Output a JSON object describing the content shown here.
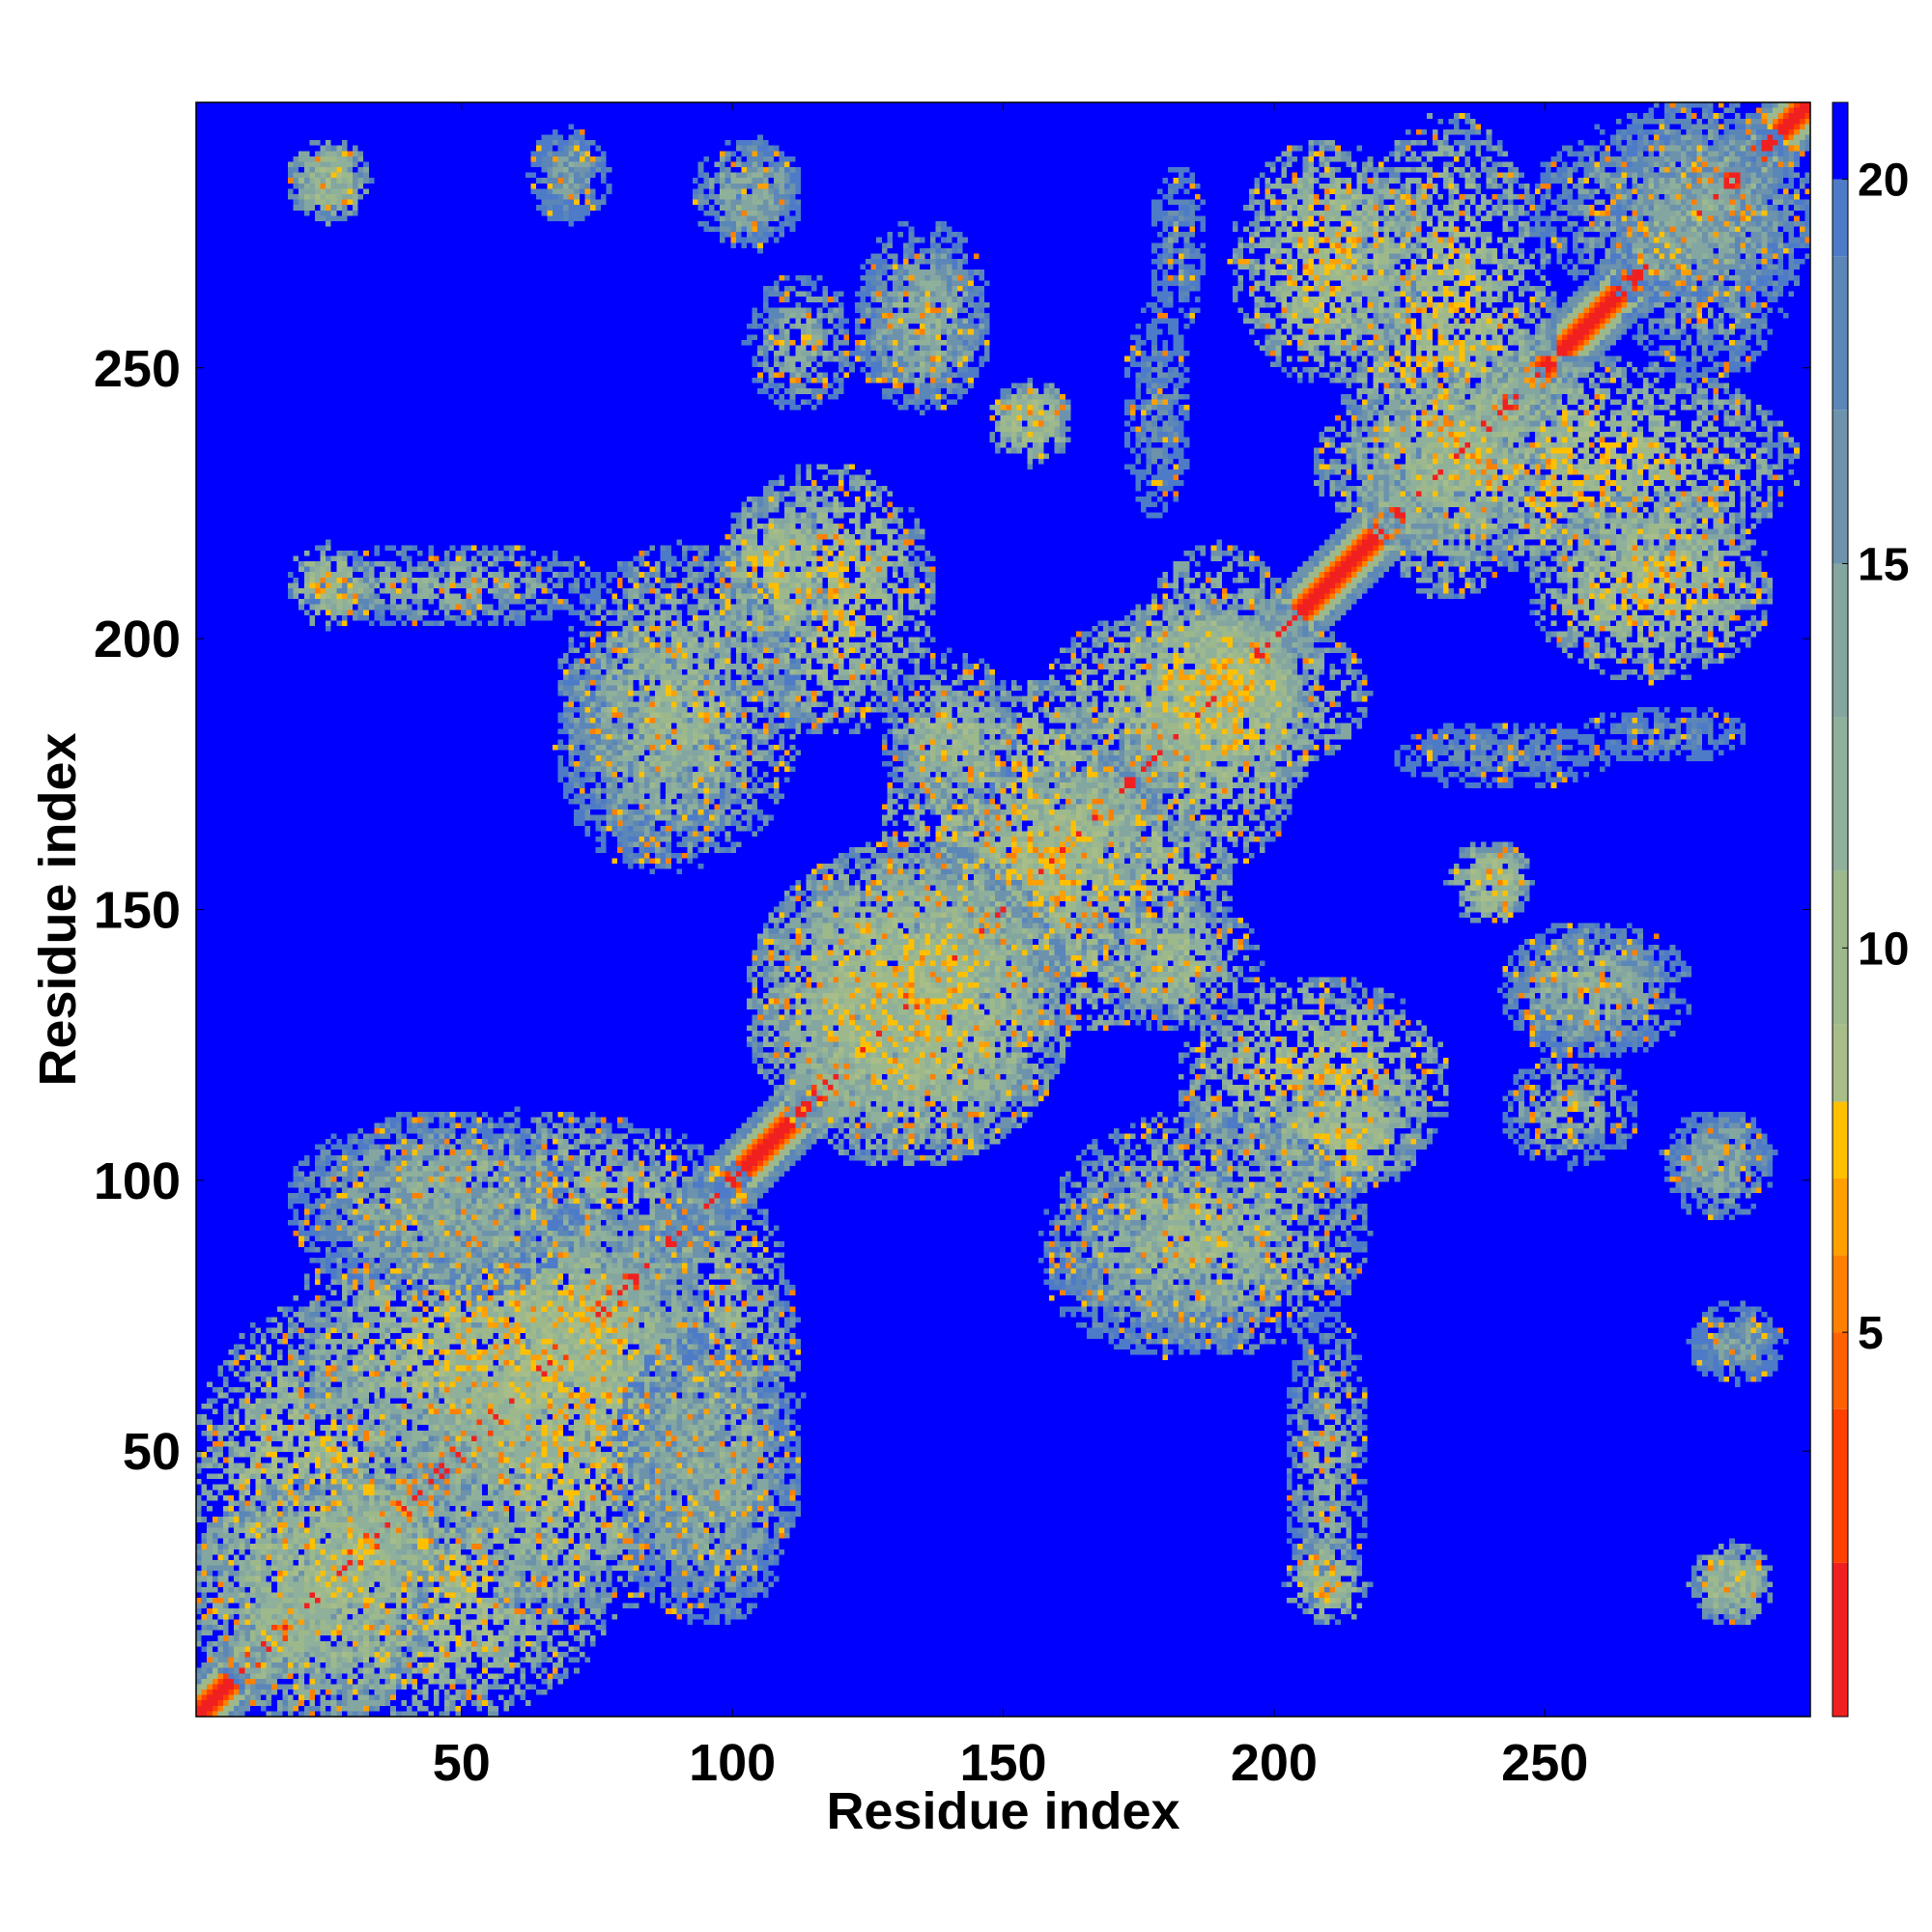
{
  "chart_data": {
    "type": "heatmap",
    "title": "",
    "xlabel": "Residue index",
    "ylabel": "Residue index",
    "xlim": [
      1,
      299
    ],
    "ylim": [
      1,
      299
    ],
    "x_ticks": [
      50,
      100,
      150,
      200,
      250
    ],
    "y_ticks": [
      50,
      100,
      150,
      200,
      250
    ],
    "matrix_size": 299,
    "symmetric": true,
    "grid": false,
    "colorbar": {
      "position": "right",
      "range": [
        0,
        21
      ],
      "ticks": [
        5,
        10,
        15,
        20
      ],
      "color_stops": [
        {
          "value": 0,
          "color": "#ff0000"
        },
        {
          "value": 2,
          "color": "#f02020"
        },
        {
          "value": 4,
          "color": "#ff4000"
        },
        {
          "value": 5,
          "color": "#ff6000"
        },
        {
          "value": 6,
          "color": "#ff8000"
        },
        {
          "value": 7,
          "color": "#ffa000"
        },
        {
          "value": 8,
          "color": "#ffc000"
        },
        {
          "value": 9,
          "color": "#a8bd88"
        },
        {
          "value": 11,
          "color": "#9db98c"
        },
        {
          "value": 13,
          "color": "#8fb09a"
        },
        {
          "value": 15,
          "color": "#84a6a0"
        },
        {
          "value": 17,
          "color": "#6d92ac"
        },
        {
          "value": 19,
          "color": "#5a86b8"
        },
        {
          "value": 20,
          "color": "#4d7bc8"
        },
        {
          "value": 21,
          "color": "#0000ff"
        }
      ],
      "background_color": "#0000ff"
    },
    "contact_regions": [
      {
        "x": [
          1,
          299
        ],
        "y": [
          1,
          299
        ],
        "kind": "diagonal"
      },
      {
        "x": [
          20,
          30
        ],
        "y": [
          280,
          290
        ],
        "value": 6
      },
      {
        "x": [
          65,
          72
        ],
        "y": [
          280,
          292
        ],
        "value": 12
      },
      {
        "x": [
          100,
          110
        ],
        "y": [
          275,
          290
        ],
        "value": 12
      },
      {
        "x": [
          105,
          120
        ],
        "y": [
          245,
          265
        ],
        "value": 10
      },
      {
        "x": [
          125,
          145
        ],
        "y": [
          245,
          270
        ],
        "value": 8
      },
      {
        "x": [
          180,
          185
        ],
        "y": [
          260,
          285
        ],
        "value": 14
      },
      {
        "x": [
          150,
          160
        ],
        "y": [
          238,
          245
        ],
        "value": 6
      },
      {
        "x": [
          100,
          135
        ],
        "y": [
          185,
          230
        ],
        "value": 6
      },
      {
        "x": [
          70,
          100
        ],
        "y": [
          160,
          200
        ],
        "value": 12
      },
      {
        "x": [
          130,
          175
        ],
        "y": [
          140,
          190
        ],
        "value": 5
      },
      {
        "x": [
          105,
          160
        ],
        "y": [
          105,
          160
        ],
        "value": 6
      },
      {
        "x": [
          170,
          195
        ],
        "y": [
          130,
          150
        ],
        "value": 8
      },
      {
        "x": [
          175,
          205
        ],
        "y": [
          160,
          215
        ],
        "value": 6
      },
      {
        "x": [
          215,
          250
        ],
        "y": [
          210,
          295
        ],
        "value": 6
      },
      {
        "x": [
          250,
          290
        ],
        "y": [
          195,
          225
        ],
        "value": 6
      },
      {
        "x": [
          250,
          300
        ],
        "y": [
          265,
          295
        ],
        "value": 10
      },
      {
        "x": [
          225,
          260
        ],
        "y": [
          175,
          182
        ],
        "value": 14
      },
      {
        "x": [
          245,
          275
        ],
        "y": [
          125,
          145
        ],
        "value": 10
      },
      {
        "x": [
          200,
          225
        ],
        "y": [
          100,
          115
        ],
        "value": 6
      },
      {
        "x": [
          160,
          215
        ],
        "y": [
          70,
          110
        ],
        "value": 8
      },
      {
        "x": [
          1,
          45
        ],
        "y": [
          1,
          75
        ],
        "value": 6
      },
      {
        "x": [
          20,
          100
        ],
        "y": [
          85,
          110
        ],
        "value": 8
      },
      {
        "x": [
          45,
          95
        ],
        "y": [
          20,
          95
        ],
        "value": 6
      },
      {
        "x": [
          80,
          110
        ],
        "y": [
          20,
          70
        ],
        "value": 10
      },
      {
        "x": [
          205,
          215
        ],
        "y": [
          20,
          75
        ],
        "value": 10
      },
      {
        "x": [
          280,
          290
        ],
        "y": [
          20,
          30
        ],
        "value": 8
      },
      {
        "x": [
          280,
          292
        ],
        "y": [
          65,
          75
        ],
        "value": 12
      },
      {
        "x": [
          275,
          290
        ],
        "y": [
          95,
          110
        ],
        "value": 10
      },
      {
        "x": [
          235,
          245
        ],
        "y": [
          150,
          160
        ],
        "value": 6
      },
      {
        "x": [
          20,
          30
        ],
        "y": [
          205,
          215
        ],
        "value": 6
      }
    ]
  }
}
